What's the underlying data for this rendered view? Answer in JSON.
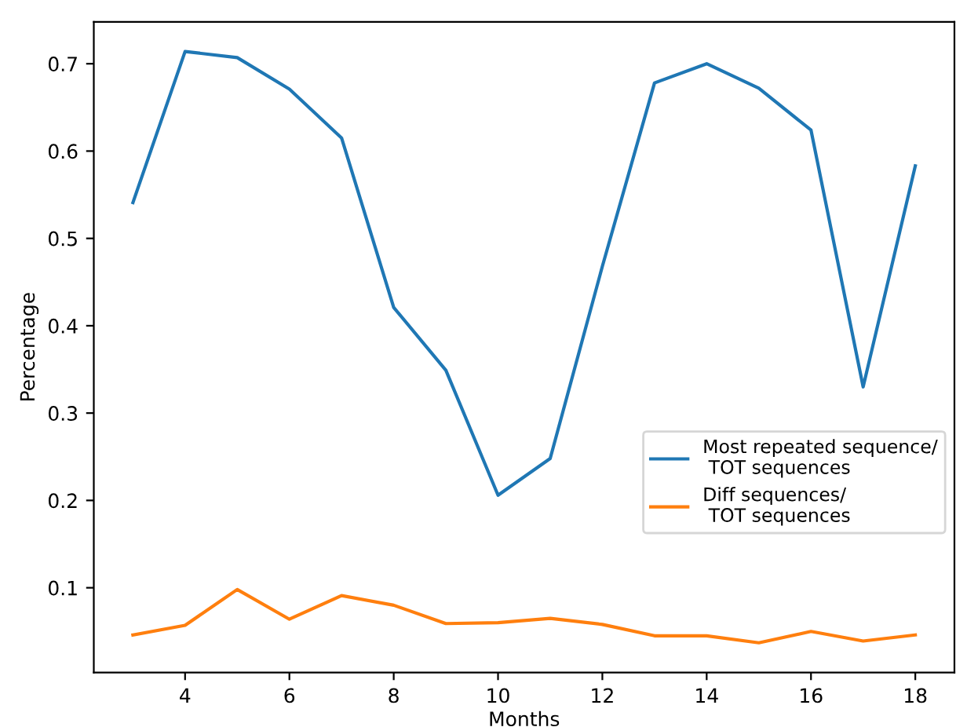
{
  "chart_data": {
    "type": "line",
    "xlabel": "Months",
    "ylabel": "Percentage",
    "x": [
      3,
      4,
      5,
      6,
      7,
      8,
      9,
      10,
      11,
      12,
      13,
      14,
      15,
      16,
      17,
      18
    ],
    "series": [
      {
        "name": "Most repeated sequence/\n TOT sequences",
        "color": "#1f77b4",
        "values": [
          0.541,
          0.714,
          0.707,
          0.671,
          0.615,
          0.421,
          0.349,
          0.206,
          0.248,
          0.468,
          0.678,
          0.7,
          0.672,
          0.624,
          0.33,
          0.583
        ]
      },
      {
        "name": "Diff sequences/\n TOT sequences",
        "color": "#ff7f0e",
        "values": [
          0.046,
          0.057,
          0.098,
          0.064,
          0.091,
          0.08,
          0.059,
          0.06,
          0.065,
          0.058,
          0.045,
          0.045,
          0.037,
          0.05,
          0.039,
          0.046
        ]
      }
    ],
    "xlim": [
      2.25,
      18.75
    ],
    "xticks": [
      4,
      6,
      8,
      10,
      12,
      14,
      16,
      18
    ],
    "ylim": [
      0.003,
      0.748
    ],
    "yticks": [
      0.1,
      0.2,
      0.3,
      0.4,
      0.5,
      0.6,
      0.7
    ],
    "grid": false,
    "legend": "lower right",
    "marker": "none",
    "line_style": "solid"
  }
}
